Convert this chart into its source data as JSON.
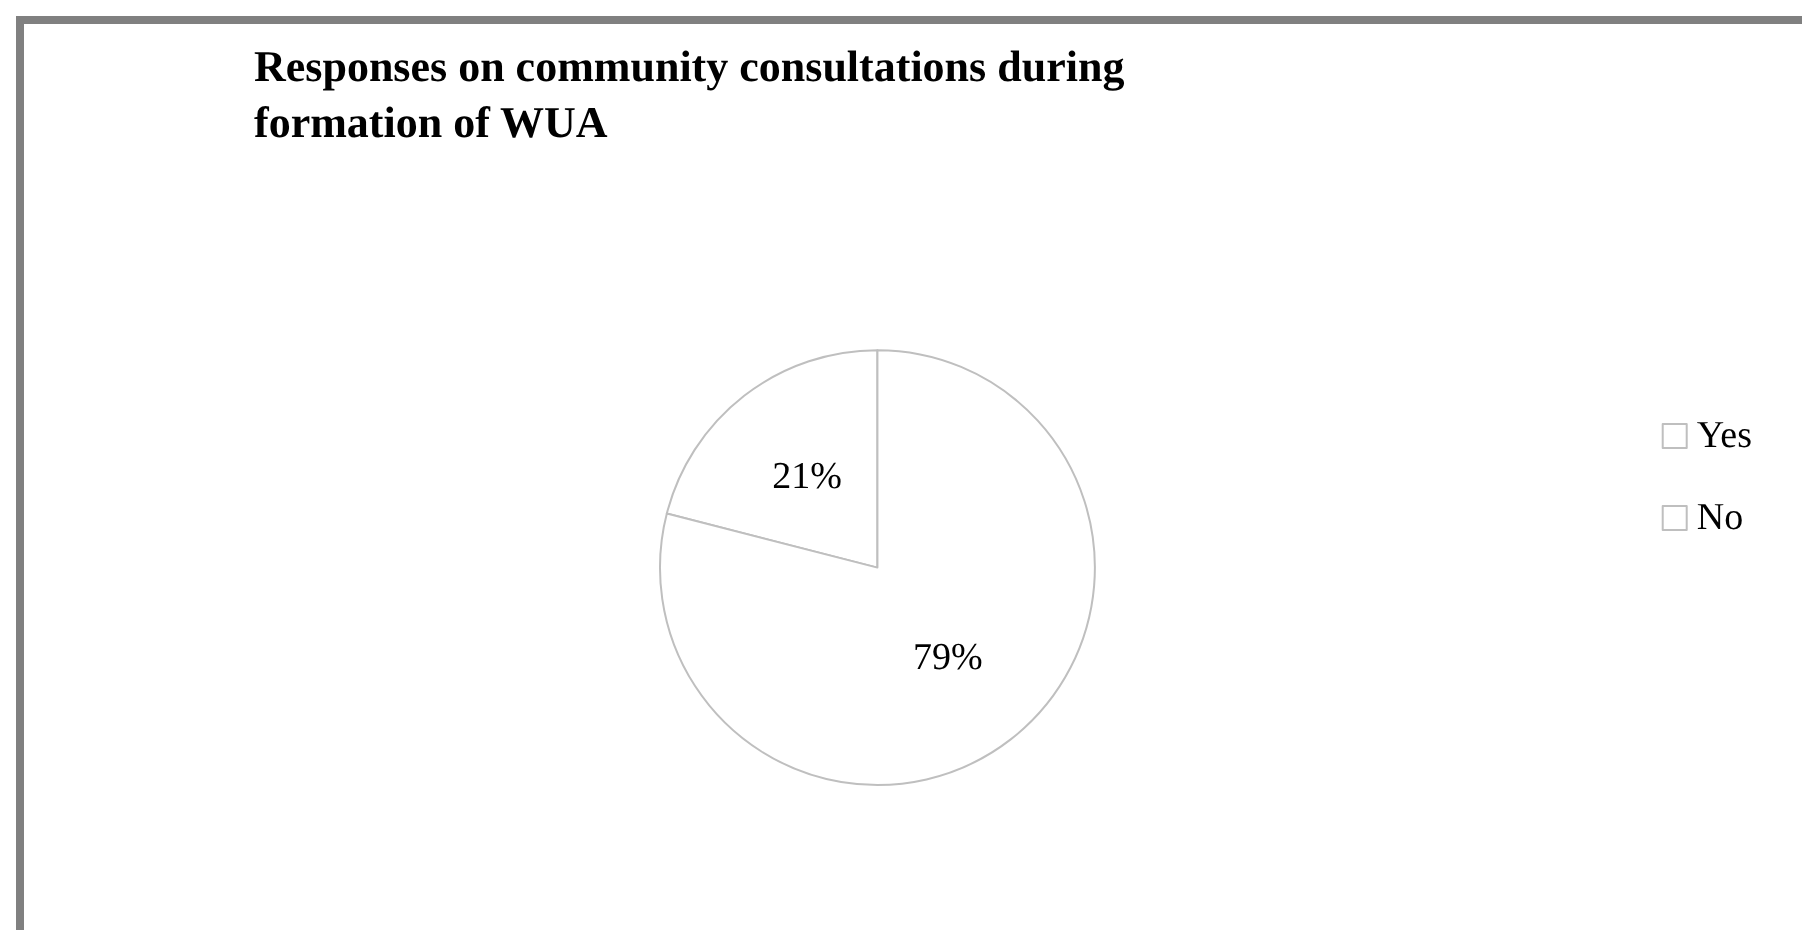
{
  "chart_data": {
    "type": "pie",
    "title": "Responses on community consultations during\nformation of WUA",
    "categories": [
      "Yes",
      "No"
    ],
    "values": [
      21,
      79
    ],
    "value_labels": [
      "21%",
      "79%"
    ],
    "colors": [
      "#ffffff",
      "#ffffff"
    ],
    "legend": "right"
  }
}
